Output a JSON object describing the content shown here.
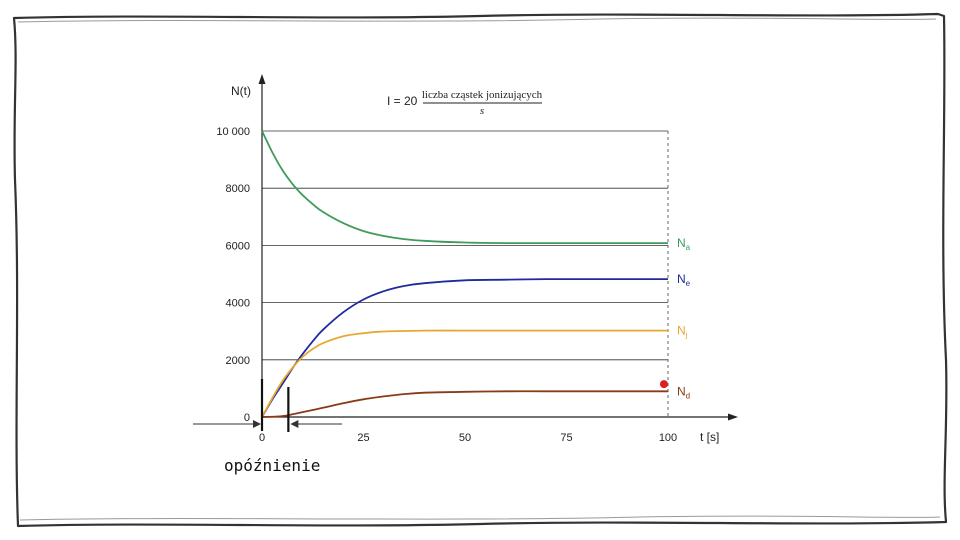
{
  "caption": "opóźnienie",
  "formula": {
    "lhs": "I = 20",
    "numerator": "liczba cząstek jonizujących",
    "denominator": "s"
  },
  "chart_data": {
    "type": "line",
    "xlabel": "t [s]",
    "ylabel": "N(t)",
    "xlim": [
      0,
      100
    ],
    "ylim": [
      0,
      10000
    ],
    "x_ticks": [
      0,
      25,
      50,
      75,
      100
    ],
    "x_tick_labels": [
      "0",
      "25",
      "50",
      "75",
      "100"
    ],
    "y_ticks": [
      0,
      2000,
      4000,
      6000,
      8000,
      10000
    ],
    "y_tick_labels": [
      "0",
      "2000",
      "4000",
      "6000",
      "8000",
      "10 000"
    ],
    "grid": "horizontal",
    "delay_marks": [
      0,
      6
    ],
    "series": [
      {
        "name": "N",
        "sub": "a",
        "color": "#3f9a5c",
        "x": [
          0,
          2.5,
          5,
          7.5,
          10,
          12.5,
          15,
          20,
          25,
          30,
          35,
          40,
          50,
          60,
          70,
          80,
          90,
          100
        ],
        "y": [
          10000,
          9270,
          8640,
          8150,
          7760,
          7440,
          7170,
          6780,
          6500,
          6330,
          6220,
          6160,
          6100,
          6080,
          6080,
          6080,
          6080,
          6080
        ]
      },
      {
        "name": "N",
        "sub": "e",
        "color": "#1f2a9e",
        "x": [
          0,
          2.5,
          5,
          7.5,
          10,
          12.5,
          15,
          20,
          25,
          30,
          35,
          40,
          50,
          60,
          70,
          80,
          90,
          100
        ],
        "y": [
          0,
          600,
          1150,
          1700,
          2200,
          2650,
          3050,
          3660,
          4110,
          4400,
          4580,
          4680,
          4780,
          4800,
          4820,
          4820,
          4820,
          4820
        ]
      },
      {
        "name": "N",
        "sub": "j",
        "color": "#e8a830",
        "x": [
          0,
          2.5,
          5,
          7.5,
          10,
          12.5,
          15,
          20,
          25,
          30,
          40,
          50,
          60,
          70,
          80,
          90,
          100
        ],
        "y": [
          0,
          650,
          1250,
          1720,
          2100,
          2380,
          2580,
          2820,
          2930,
          2990,
          3020,
          3020,
          3020,
          3020,
          3020,
          3020,
          3020
        ]
      },
      {
        "name": "N",
        "sub": "d",
        "color": "#8a3a18",
        "x": [
          0,
          5,
          8,
          10,
          15,
          20,
          25,
          30,
          35,
          40,
          50,
          60,
          70,
          80,
          90,
          100
        ],
        "y": [
          0,
          30,
          110,
          170,
          320,
          480,
          620,
          720,
          800,
          850,
          880,
          900,
          900,
          900,
          900,
          900
        ]
      }
    ],
    "marker": {
      "x": 99,
      "y": 1150,
      "color": "#e02020"
    }
  }
}
